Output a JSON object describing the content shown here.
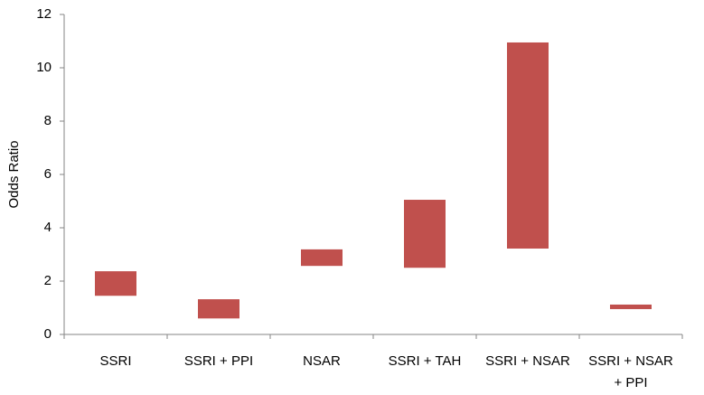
{
  "chart_data": {
    "type": "floating-bar",
    "y_label": "Odds Ratio",
    "categories": [
      "SSRI",
      "SSRI + PPI",
      "NSAR",
      "SSRI + TAH",
      "SSRI + NSAR",
      "SSRI + NSAR + PPI"
    ],
    "ranges": [
      [
        1.45,
        2.37
      ],
      [
        0.6,
        1.32
      ],
      [
        2.57,
        3.19
      ],
      [
        2.5,
        5.05
      ],
      [
        3.22,
        10.95
      ],
      [
        0.95,
        1.12
      ]
    ],
    "color": "#c0504d",
    "ylim": [
      0,
      12
    ],
    "yticks": [
      0,
      2,
      4,
      6,
      8,
      10,
      12
    ]
  }
}
